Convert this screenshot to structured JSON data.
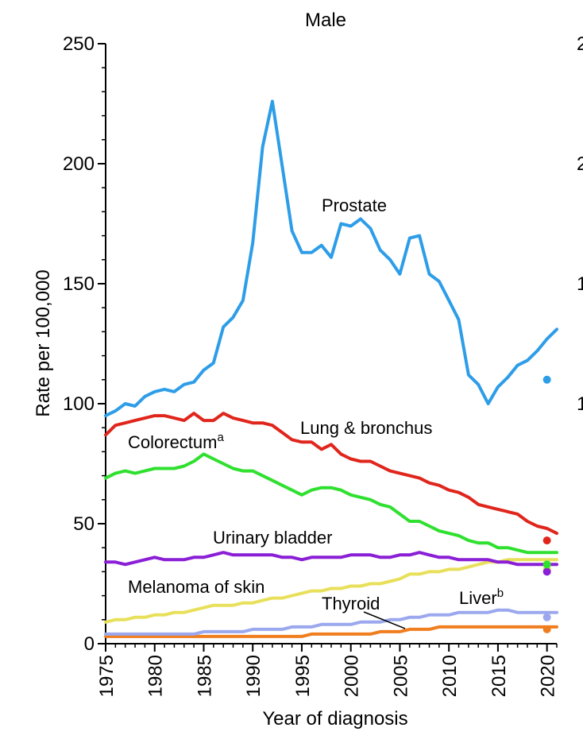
{
  "chart_data": {
    "type": "line",
    "title": "Male",
    "xlabel": "Year of diagnosis",
    "ylabel": "Rate per 100,000",
    "xlim": [
      1975,
      2021
    ],
    "ylim": [
      0,
      250
    ],
    "x_ticks": [
      "1975",
      "1980",
      "1985",
      "1990",
      "1995",
      "2000",
      "2005",
      "2010",
      "2015",
      "2020"
    ],
    "y_ticks": [
      "0",
      "50",
      "100",
      "150",
      "200",
      "250"
    ],
    "grid": false,
    "legend": "none (direct labels)",
    "x": [
      1975,
      1976,
      1977,
      1978,
      1979,
      1980,
      1981,
      1982,
      1983,
      1984,
      1985,
      1986,
      1987,
      1988,
      1989,
      1990,
      1991,
      1992,
      1993,
      1994,
      1995,
      1996,
      1997,
      1998,
      1999,
      2000,
      2001,
      2002,
      2003,
      2004,
      2005,
      2006,
      2007,
      2008,
      2009,
      2010,
      2011,
      2012,
      2013,
      2014,
      2015,
      2016,
      2017,
      2018,
      2019,
      2020,
      2021
    ],
    "series": [
      {
        "name": "Prostate",
        "sup": "",
        "color": "#2e9de8",
        "values": [
          95,
          97,
          100,
          99,
          103,
          105,
          106,
          105,
          108,
          109,
          114,
          117,
          132,
          136,
          143,
          167,
          207,
          226,
          199,
          172,
          163,
          163,
          166,
          161,
          175,
          174,
          177,
          173,
          164,
          160,
          154,
          169,
          170,
          154,
          151,
          143,
          135,
          112,
          108,
          100,
          107,
          111,
          116,
          118,
          122,
          127,
          131
        ],
        "point_2020": 110
      },
      {
        "name": "Lung & bronchus",
        "sup": "",
        "color": "#e0261c",
        "values": [
          87,
          91,
          92,
          93,
          94,
          95,
          95,
          94,
          93,
          96,
          93,
          93,
          96,
          94,
          93,
          92,
          92,
          91,
          88,
          85,
          84,
          84,
          81,
          83,
          79,
          77,
          76,
          76,
          74,
          72,
          71,
          70,
          69,
          67,
          66,
          64,
          63,
          61,
          58,
          57,
          56,
          55,
          54,
          51,
          49,
          48,
          46
        ],
        "point_2020": 43
      },
      {
        "name": "Colorectum",
        "sup": "a",
        "color": "#2fe02f",
        "values": [
          69,
          71,
          72,
          71,
          72,
          73,
          73,
          73,
          74,
          76,
          79,
          77,
          75,
          73,
          72,
          72,
          70,
          68,
          66,
          64,
          62,
          64,
          65,
          65,
          64,
          62,
          61,
          60,
          58,
          57,
          54,
          51,
          51,
          49,
          47,
          46,
          45,
          43,
          42,
          42,
          40,
          40,
          39,
          38,
          38,
          38,
          38
        ],
        "point_2020": 33
      },
      {
        "name": "Urinary bladder",
        "sup": "",
        "color": "#8a1fd6",
        "values": [
          34,
          34,
          33,
          34,
          35,
          36,
          35,
          35,
          35,
          36,
          36,
          37,
          38,
          37,
          37,
          37,
          37,
          37,
          36,
          36,
          35,
          36,
          36,
          36,
          36,
          37,
          37,
          37,
          36,
          36,
          37,
          37,
          38,
          37,
          36,
          36,
          35,
          35,
          35,
          35,
          34,
          34,
          33,
          33,
          33,
          33,
          33
        ],
        "point_2020": 30
      },
      {
        "name": "Melanoma of skin",
        "sup": "",
        "color": "#e8e05a",
        "values": [
          9,
          10,
          10,
          11,
          11,
          12,
          12,
          13,
          13,
          14,
          15,
          16,
          16,
          16,
          17,
          17,
          18,
          19,
          19,
          20,
          21,
          22,
          22,
          23,
          23,
          24,
          24,
          25,
          25,
          26,
          27,
          29,
          29,
          30,
          30,
          31,
          31,
          32,
          33,
          34,
          34,
          35,
          35,
          35,
          35,
          35,
          35
        ],
        "point_2020": 31
      },
      {
        "name": "Liver",
        "sup": "b",
        "color": "#9ba8ee",
        "values": [
          4,
          4,
          4,
          4,
          4,
          4,
          4,
          4,
          4,
          4,
          5,
          5,
          5,
          5,
          5,
          6,
          6,
          6,
          6,
          7,
          7,
          7,
          8,
          8,
          8,
          8,
          9,
          9,
          9,
          10,
          10,
          11,
          11,
          12,
          12,
          12,
          13,
          13,
          13,
          13,
          14,
          14,
          13,
          13,
          13,
          13,
          13
        ],
        "point_2020": 11
      },
      {
        "name": "Thyroid",
        "sup": "",
        "color": "#f07d1e",
        "values": [
          3,
          3,
          3,
          3,
          3,
          3,
          3,
          3,
          3,
          3,
          3,
          3,
          3,
          3,
          3,
          3,
          3,
          3,
          3,
          3,
          3,
          4,
          4,
          4,
          4,
          4,
          4,
          4,
          5,
          5,
          5,
          6,
          6,
          6,
          7,
          7,
          7,
          7,
          7,
          7,
          7,
          7,
          7,
          7,
          7,
          7,
          7
        ],
        "point_2020": 6
      }
    ]
  }
}
